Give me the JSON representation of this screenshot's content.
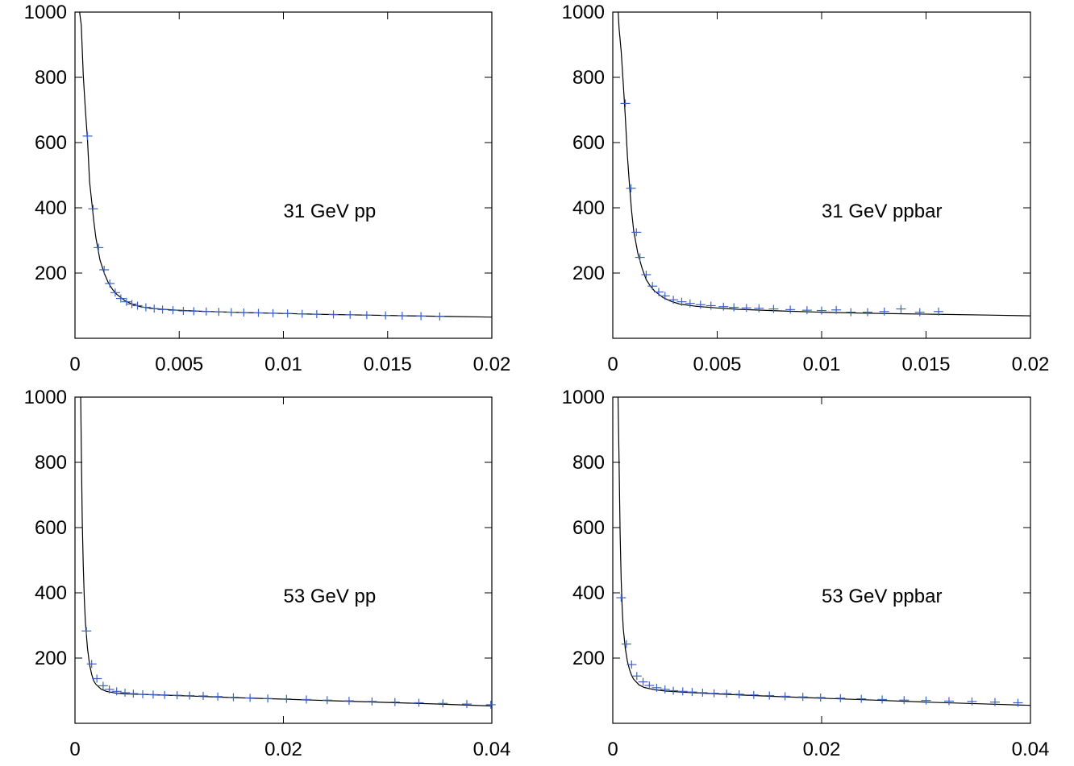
{
  "chart_data": [
    {
      "type": "scatter",
      "title": "",
      "xlabel": "",
      "ylabel": "",
      "xlim": [
        0,
        0.02
      ],
      "ylim": [
        0,
        1000
      ],
      "xticks": [
        "0",
        "0.005",
        "0.01",
        "0.015",
        "0.02"
      ],
      "xtick_values": [
        0,
        0.005,
        0.01,
        0.015,
        0.02
      ],
      "yticks": [
        "200",
        "400",
        "600",
        "800",
        "1000"
      ],
      "ytick_values": [
        200,
        400,
        600,
        800,
        1000
      ],
      "annotation": "31 GeV pp",
      "grid": false,
      "marker_color": "#3a62c9",
      "series": [
        {
          "x": [
            0.0006,
            0.00087,
            0.00113,
            0.0014,
            0.00167,
            0.00193,
            0.0022,
            0.00247,
            0.00273,
            0.003,
            0.0034,
            0.0038,
            0.0042,
            0.0047,
            0.0052,
            0.0057,
            0.0063,
            0.0069,
            0.0075,
            0.0081,
            0.0088,
            0.0095,
            0.0102,
            0.0109,
            0.0116,
            0.0124,
            0.0132,
            0.014,
            0.0149,
            0.0157,
            0.0166,
            0.0175
          ],
          "y": [
            620,
            397,
            278,
            210,
            168,
            140,
            122,
            112,
            105,
            100,
            95,
            91,
            88,
            86,
            84,
            83,
            82,
            81,
            80,
            79,
            78,
            77,
            76,
            75,
            74,
            73,
            72,
            71,
            70,
            69,
            68,
            67
          ]
        },
        {
          "fit": true,
          "x": [
            0.00022,
            0.0003,
            0.0004,
            0.0005,
            0.0006,
            0.0007,
            0.0008,
            0.0009,
            0.001,
            0.0012,
            0.0014,
            0.0016,
            0.0018,
            0.002,
            0.0024,
            0.0028,
            0.0032,
            0.004,
            0.005,
            0.006,
            0.008,
            0.01,
            0.012,
            0.014,
            0.016,
            0.018,
            0.02
          ],
          "y": [
            1000,
            960,
            805,
            700,
            610,
            480,
            420,
            360,
            310,
            240,
            200,
            170,
            150,
            135,
            115,
            103,
            96,
            90,
            86,
            83,
            79,
            76,
            73,
            71,
            69,
            67,
            65
          ]
        }
      ]
    },
    {
      "type": "scatter",
      "title": "",
      "xlabel": "",
      "ylabel": "",
      "xlim": [
        0,
        0.02
      ],
      "ylim": [
        0,
        1000
      ],
      "xticks": [
        "0",
        "0.005",
        "0.01",
        "0.015",
        "0.02"
      ],
      "xtick_values": [
        0,
        0.005,
        0.01,
        0.015,
        0.02
      ],
      "yticks": [
        "200",
        "400",
        "600",
        "800",
        "1000"
      ],
      "ytick_values": [
        200,
        400,
        600,
        800,
        1000
      ],
      "annotation": "31 GeV ppbar",
      "grid": false,
      "marker_color": "#3a62c9",
      "series": [
        {
          "x": [
            0.0006,
            0.00087,
            0.00113,
            0.0013,
            0.0016,
            0.0019,
            0.0022,
            0.0025,
            0.0029,
            0.0033,
            0.0037,
            0.0042,
            0.0047,
            0.0053,
            0.0058,
            0.0064,
            0.007,
            0.0077,
            0.0085,
            0.0093,
            0.01,
            0.0107,
            0.0114,
            0.0122,
            0.013,
            0.0138,
            0.0147,
            0.0156
          ],
          "y": [
            720,
            460,
            325,
            248,
            195,
            160,
            142,
            130,
            118,
            112,
            107,
            103,
            100,
            97,
            95,
            93,
            92,
            90,
            88,
            86,
            85,
            87,
            80,
            80,
            82,
            90,
            80,
            82
          ]
        },
        {
          "fit": true,
          "x": [
            0.00026,
            0.0003,
            0.0004,
            0.0005,
            0.0006,
            0.0007,
            0.0008,
            0.0009,
            0.001,
            0.0012,
            0.0014,
            0.0016,
            0.0018,
            0.002,
            0.0024,
            0.0028,
            0.0032,
            0.004,
            0.005,
            0.006,
            0.008,
            0.01,
            0.012,
            0.014,
            0.016,
            0.018,
            0.02
          ],
          "y": [
            1000,
            950,
            880,
            780,
            680,
            560,
            470,
            390,
            330,
            260,
            215,
            180,
            160,
            145,
            125,
            113,
            105,
            98,
            93,
            89,
            84,
            80,
            77,
            75,
            73,
            71,
            69
          ]
        }
      ]
    },
    {
      "type": "scatter",
      "title": "",
      "xlabel": "",
      "ylabel": "",
      "xlim": [
        0,
        0.04
      ],
      "ylim": [
        0,
        1000
      ],
      "xticks": [
        "0",
        "0.02",
        "0.04"
      ],
      "xtick_values": [
        0,
        0.02,
        0.04
      ],
      "yticks": [
        "200",
        "400",
        "600",
        "800",
        "1000"
      ],
      "ytick_values": [
        200,
        400,
        600,
        800,
        1000
      ],
      "annotation": "53 GeV pp",
      "grid": false,
      "marker_color": "#3a62c9",
      "series": [
        {
          "x": [
            0.0011,
            0.0016,
            0.0021,
            0.0027,
            0.0033,
            0.004,
            0.0048,
            0.0056,
            0.0065,
            0.0075,
            0.0086,
            0.0098,
            0.011,
            0.0123,
            0.0137,
            0.0152,
            0.0168,
            0.0185,
            0.0203,
            0.0222,
            0.0242,
            0.0263,
            0.0285,
            0.0307,
            0.033,
            0.0353,
            0.0376,
            0.0399
          ],
          "y": [
            283,
            182,
            137,
            115,
            104,
            98,
            94,
            91,
            89,
            88,
            87,
            86,
            85,
            84,
            82,
            80,
            78,
            76,
            75,
            73,
            71,
            69,
            67,
            65,
            63,
            61,
            59,
            57
          ]
        },
        {
          "fit": true,
          "x": [
            0.00055,
            0.0006,
            0.0007,
            0.0008,
            0.0009,
            0.001,
            0.0012,
            0.0014,
            0.0016,
            0.0018,
            0.002,
            0.0025,
            0.003,
            0.004,
            0.005,
            0.007,
            0.01,
            0.015,
            0.02,
            0.025,
            0.03,
            0.035,
            0.04
          ],
          "y": [
            1000,
            850,
            620,
            480,
            380,
            310,
            230,
            180,
            150,
            130,
            120,
            105,
            98,
            92,
            90,
            88,
            85,
            79,
            74,
            69,
            64,
            59,
            53
          ]
        }
      ]
    },
    {
      "type": "scatter",
      "title": "",
      "xlabel": "",
      "ylabel": "",
      "xlim": [
        0,
        0.04
      ],
      "ylim": [
        0,
        1000
      ],
      "xticks": [
        "0",
        "0.02",
        "0.04"
      ],
      "xtick_values": [
        0,
        0.02,
        0.04
      ],
      "yticks": [
        "200",
        "400",
        "600",
        "800",
        "1000"
      ],
      "ytick_values": [
        200,
        400,
        600,
        800,
        1000
      ],
      "annotation": "53 GeV ppbar",
      "grid": false,
      "marker_color": "#3a62c9",
      "series": [
        {
          "x": [
            0.0008,
            0.0013,
            0.0018,
            0.0023,
            0.0029,
            0.0035,
            0.0042,
            0.005,
            0.0058,
            0.0067,
            0.0076,
            0.0086,
            0.0097,
            0.0109,
            0.0121,
            0.0135,
            0.015,
            0.0165,
            0.0182,
            0.0199,
            0.0218,
            0.0238,
            0.0258,
            0.0279,
            0.03,
            0.0322,
            0.0344,
            0.0366,
            0.0388
          ],
          "y": [
            385,
            243,
            180,
            145,
            127,
            116,
            109,
            104,
            100,
            98,
            96,
            94,
            92,
            91,
            89,
            87,
            85,
            83,
            81,
            79,
            77,
            75,
            73,
            71,
            70,
            68,
            67,
            65,
            63
          ]
        },
        {
          "fit": true,
          "x": [
            0.0005,
            0.0006,
            0.0007,
            0.0008,
            0.0009,
            0.001,
            0.0012,
            0.0014,
            0.0016,
            0.0018,
            0.002,
            0.0025,
            0.003,
            0.004,
            0.005,
            0.007,
            0.01,
            0.015,
            0.02,
            0.025,
            0.03,
            0.035,
            0.04
          ],
          "y": [
            1000,
            800,
            580,
            440,
            350,
            290,
            230,
            190,
            165,
            147,
            135,
            118,
            110,
            103,
            99,
            95,
            90,
            83,
            77,
            71,
            65,
            60,
            55
          ]
        }
      ]
    }
  ]
}
